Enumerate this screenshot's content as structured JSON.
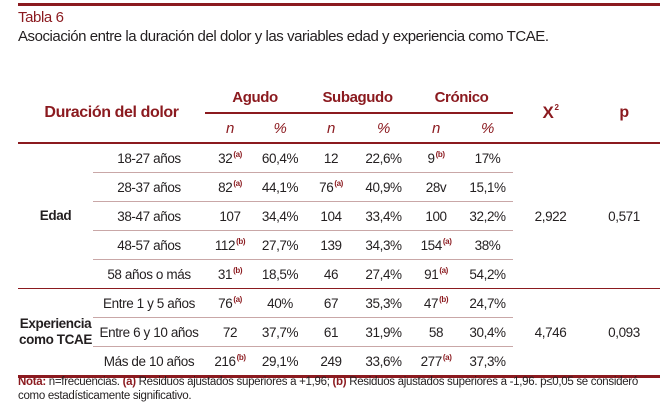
{
  "table_label": "Tabla 6",
  "caption": "Asociación entre la duración del dolor y las variables edad y experiencia como TCAE.",
  "header": {
    "row_label": "Duración del dolor",
    "groups": [
      "Agudo",
      "Subagudo",
      "Crónico"
    ],
    "sub": [
      "n",
      "%",
      "n",
      "%",
      "n",
      "%"
    ],
    "chi": "X",
    "chi_sup": "2",
    "p": "p"
  },
  "sections": [
    {
      "label": "Edad",
      "chi": "2,922",
      "p": "0,571",
      "rows": [
        {
          "label": "18-27 años",
          "cells": [
            {
              "v": "32",
              "s": "(a)"
            },
            {
              "v": "60,4%",
              "s": ""
            },
            {
              "v": "12",
              "s": ""
            },
            {
              "v": "22,6%",
              "s": ""
            },
            {
              "v": "9",
              "s": "(b)"
            },
            {
              "v": "17%",
              "s": ""
            }
          ]
        },
        {
          "label": "28-37 años",
          "cells": [
            {
              "v": "82",
              "s": "(a)"
            },
            {
              "v": "44,1%",
              "s": ""
            },
            {
              "v": "76",
              "s": "(a)"
            },
            {
              "v": "40,9%",
              "s": ""
            },
            {
              "v": "28v",
              "s": ""
            },
            {
              "v": "15,1%",
              "s": ""
            }
          ]
        },
        {
          "label": "38-47 años",
          "cells": [
            {
              "v": "107",
              "s": ""
            },
            {
              "v": "34,4%",
              "s": ""
            },
            {
              "v": "104",
              "s": ""
            },
            {
              "v": "33,4%",
              "s": ""
            },
            {
              "v": "100",
              "s": ""
            },
            {
              "v": "32,2%",
              "s": ""
            }
          ]
        },
        {
          "label": "48-57 años",
          "cells": [
            {
              "v": "112",
              "s": "(b)"
            },
            {
              "v": "27,7%",
              "s": ""
            },
            {
              "v": "139",
              "s": ""
            },
            {
              "v": "34,3%",
              "s": ""
            },
            {
              "v": "154",
              "s": "(a)"
            },
            {
              "v": "38%",
              "s": ""
            }
          ]
        },
        {
          "label": "58 años o más",
          "cells": [
            {
              "v": "31",
              "s": "(b)"
            },
            {
              "v": "18,5%",
              "s": ""
            },
            {
              "v": "46",
              "s": ""
            },
            {
              "v": "27,4%",
              "s": ""
            },
            {
              "v": "91",
              "s": "(a)"
            },
            {
              "v": "54,2%",
              "s": ""
            }
          ]
        }
      ]
    },
    {
      "label": "Experiencia como TCAE",
      "chi": "4,746",
      "p": "0,093",
      "rows": [
        {
          "label": "Entre 1 y 5 años",
          "cells": [
            {
              "v": "76",
              "s": "(a)"
            },
            {
              "v": "40%",
              "s": ""
            },
            {
              "v": "67",
              "s": ""
            },
            {
              "v": "35,3%",
              "s": ""
            },
            {
              "v": "47",
              "s": "(b)"
            },
            {
              "v": "24,7%",
              "s": ""
            }
          ]
        },
        {
          "label": "Entre 6 y 10 años",
          "cells": [
            {
              "v": "72",
              "s": ""
            },
            {
              "v": "37,7%",
              "s": ""
            },
            {
              "v": "61",
              "s": ""
            },
            {
              "v": "31,9%",
              "s": ""
            },
            {
              "v": "58",
              "s": ""
            },
            {
              "v": "30,4%",
              "s": ""
            }
          ]
        },
        {
          "label": "Más de 10 años",
          "cells": [
            {
              "v": "216",
              "s": "(b)"
            },
            {
              "v": "29,1%",
              "s": ""
            },
            {
              "v": "249",
              "s": ""
            },
            {
              "v": "33,6%",
              "s": ""
            },
            {
              "v": "277",
              "s": "(a)"
            },
            {
              "v": "37,3%",
              "s": ""
            }
          ]
        }
      ]
    }
  ],
  "note": {
    "label": "Nota:",
    "t1": " n=frecuencias. ",
    "a": "(a)",
    "t2": " Residuos ajustados superiores a +1,96; ",
    "b": "(b)",
    "t3": " Residuos ajustados superiores a -1,96. p≤0,05 se consideró como estadísticamente significativo."
  },
  "colors": {
    "accent": "#8b1a1f",
    "text": "#231f20"
  }
}
